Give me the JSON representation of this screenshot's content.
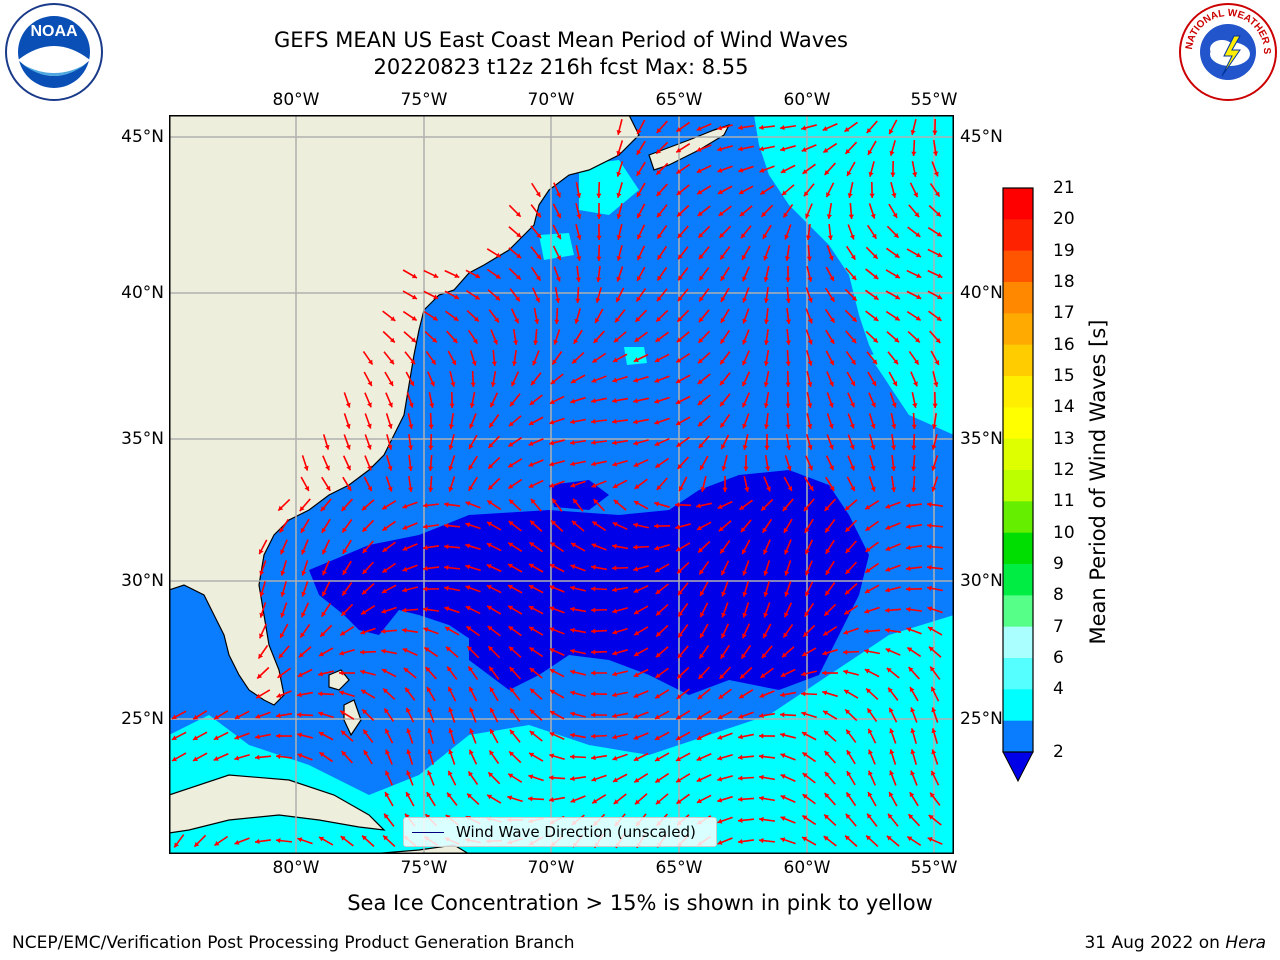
{
  "title": {
    "line1": "GEFS MEAN US East Coast Mean Period of Wind Waves",
    "line2": "20220823 t12z 216h fcst   Max: 8.55"
  },
  "logos": {
    "left": "NOAA",
    "right": "NATIONAL WEATHER SERVICE"
  },
  "map": {
    "lon_labels_top": [
      "80°W",
      "75°W",
      "70°W",
      "65°W",
      "60°W",
      "55°W"
    ],
    "lon_labels_bottom": [
      "80°W",
      "75°W",
      "70°W",
      "65°W",
      "60°W",
      "55°W"
    ],
    "lat_labels_left": [
      "45°N",
      "40°N",
      "35°N",
      "30°N",
      "25°N"
    ],
    "lat_labels_right": [
      "45°N",
      "40°N",
      "35°N",
      "30°N",
      "25°N"
    ],
    "lon_range": [
      -85,
      -54.3
    ],
    "lat_range": [
      20.5,
      45.8
    ],
    "legend_text": "Wind Wave Direction (unscaled)",
    "colors": {
      "land": "#eeeedd",
      "ocean_2_4": "#0a7dff",
      "ocean_below_2": "#0000e8",
      "ocean_4_6": "#00ffff",
      "grid": "#b0b0b0",
      "arrows": "#ff0000"
    }
  },
  "colorbar": {
    "label": "Mean Period of Wind Waves [s]",
    "ticks": [
      "21",
      "20",
      "19",
      "18",
      "17",
      "16",
      "15",
      "14",
      "13",
      "12",
      "11",
      "10",
      "9",
      "8",
      "7",
      "6",
      "4",
      "2"
    ],
    "colors": [
      "#ff0000",
      "#ff2200",
      "#ff5500",
      "#ff8800",
      "#ffaa00",
      "#ffcc00",
      "#ffee00",
      "#ffff00",
      "#ddff00",
      "#bbff00",
      "#66ee00",
      "#00dd00",
      "#00ee44",
      "#55ff88",
      "#aaffff",
      "#55ffff",
      "#00ffff",
      "#0a7dff"
    ],
    "under_color": "#0000e8"
  },
  "notes": {
    "sea_ice": "Sea Ice Concentration > 15% is shown in pink to yellow",
    "footer_left": "NCEP/EMC/Verification Post Processing Product Generation Branch",
    "footer_date": "31 Aug 2022 on ",
    "footer_host": "Hera"
  }
}
